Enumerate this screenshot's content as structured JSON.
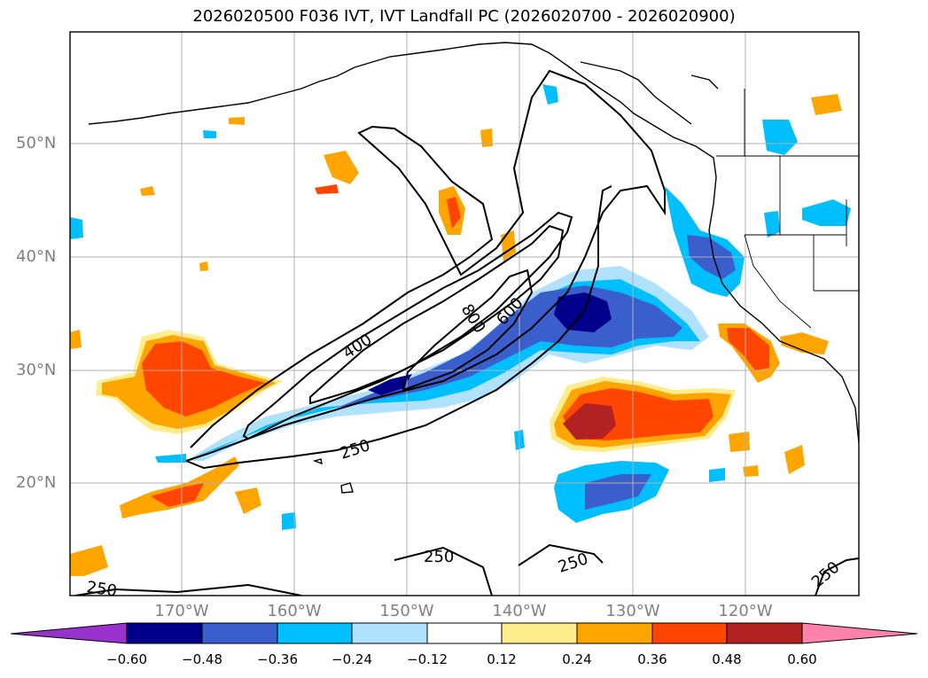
{
  "title": "2026020500 F036 IVT, IVT Landfall PC (2026020700 - 2026020900)",
  "lat_labels": [
    "50°N",
    "40°N",
    "30°N",
    "20°N"
  ],
  "lon_labels": [
    "170°W",
    "160°W",
    "150°W",
    "140°W",
    "130°W",
    "120°W"
  ],
  "contour_labels": [
    "400",
    "800",
    "600",
    "250",
    "250",
    "250",
    "250",
    "250"
  ],
  "colorbar": {
    "ticks": [
      "−0.60",
      "−0.48",
      "−0.36",
      "−0.24",
      "−0.12",
      "0.12",
      "0.24",
      "0.36",
      "0.48",
      "0.60"
    ],
    "colors": [
      "#9932cc",
      "#00008b",
      "#3a5fcd",
      "#00bfff",
      "#b0e2ff",
      "#ffffff",
      "#ffec8b",
      "#ffa500",
      "#ff4500",
      "#b22222",
      "#ff82ab"
    ]
  }
}
